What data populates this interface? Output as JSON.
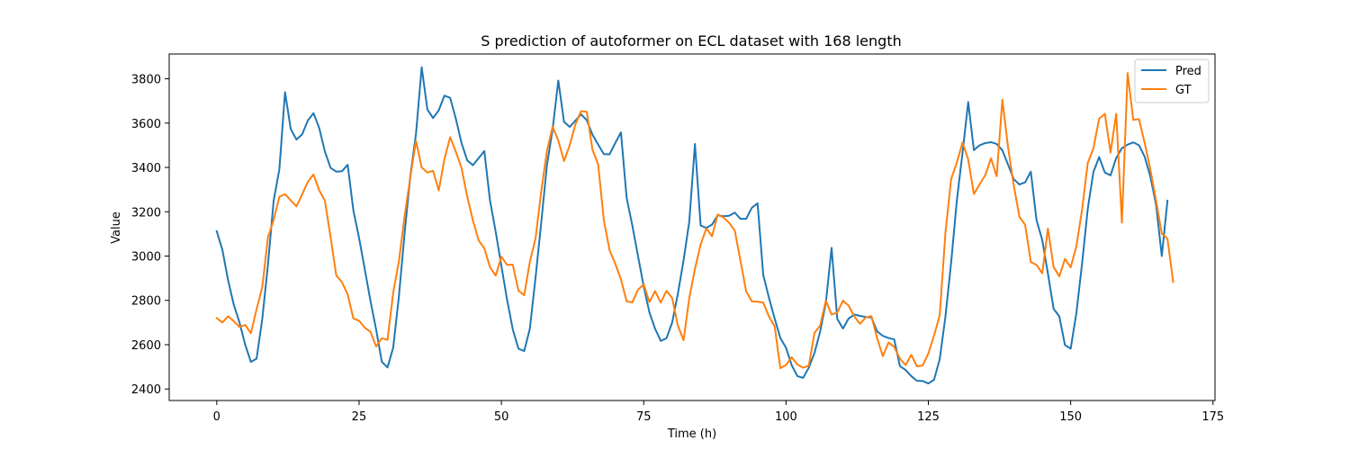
{
  "chart_data": {
    "type": "line",
    "title": "S prediction of autoformer on ECL dataset with 168 length",
    "xlabel": "Time (h)",
    "ylabel": "Value",
    "xlim": [
      -8.35,
      175.35
    ],
    "ylim": [
      2348,
      3912
    ],
    "xticks": [
      0,
      25,
      50,
      75,
      100,
      125,
      150,
      175
    ],
    "yticks": [
      2400,
      2600,
      2800,
      3000,
      3200,
      3400,
      3600,
      3800
    ],
    "grid": false,
    "legend_position": "top-right",
    "series": [
      {
        "name": "Pred",
        "color": "#1f77b4",
        "values": [
          3112,
          3027,
          2890,
          2780,
          2700,
          2600,
          2522,
          2537,
          2716,
          2962,
          3250,
          3391,
          3740,
          3573,
          3526,
          3549,
          3612,
          3645,
          3578,
          3472,
          3398,
          3381,
          3383,
          3412,
          3206,
          3082,
          2941,
          2798,
          2668,
          2523,
          2497,
          2587,
          2818,
          3103,
          3360,
          3551,
          3852,
          3662,
          3623,
          3658,
          3724,
          3714,
          3620,
          3510,
          3432,
          3410,
          3442,
          3474,
          3251,
          3110,
          2956,
          2803,
          2669,
          2582,
          2571,
          2672,
          2903,
          3150,
          3410,
          3572,
          3792,
          3606,
          3583,
          3611,
          3640,
          3613,
          3548,
          3503,
          3460,
          3459,
          3510,
          3558,
          3263,
          3138,
          3000,
          2863,
          2746,
          2672,
          2617,
          2629,
          2700,
          2830,
          2980,
          3155,
          3506,
          3138,
          3127,
          3142,
          3184,
          3180,
          3182,
          3196,
          3168,
          3168,
          3218,
          3238,
          2914,
          2812,
          2718,
          2630,
          2586,
          2507,
          2458,
          2450,
          2496,
          2563,
          2660,
          2790,
          3037,
          2716,
          2673,
          2718,
          2736,
          2730,
          2725,
          2723,
          2660,
          2640,
          2630,
          2624,
          2503,
          2486,
          2458,
          2437,
          2436,
          2425,
          2442,
          2535,
          2727,
          2970,
          3250,
          3465,
          3695,
          3478,
          3500,
          3510,
          3514,
          3506,
          3477,
          3413,
          3347,
          3323,
          3333,
          3381,
          3162,
          3073,
          2921,
          2762,
          2728,
          2598,
          2582,
          2742,
          2966,
          3213,
          3380,
          3447,
          3377,
          3364,
          3443,
          3487,
          3503,
          3513,
          3500,
          3448,
          3358,
          3232,
          3000,
          3250
        ]
      },
      {
        "name": "GT",
        "color": "#ff7f0e",
        "values": [
          2720,
          2700,
          2728,
          2706,
          2680,
          2689,
          2652,
          2760,
          2860,
          3085,
          3163,
          3267,
          3280,
          3251,
          3224,
          3278,
          3335,
          3368,
          3297,
          3250,
          3085,
          2912,
          2882,
          2827,
          2718,
          2708,
          2677,
          2658,
          2592,
          2629,
          2622,
          2835,
          2977,
          3180,
          3355,
          3520,
          3400,
          3377,
          3385,
          3296,
          3438,
          3536,
          3471,
          3398,
          3268,
          3161,
          3071,
          3035,
          2950,
          2912,
          2997,
          2960,
          2961,
          2844,
          2823,
          2974,
          3079,
          3292,
          3474,
          3584,
          3521,
          3429,
          3500,
          3594,
          3654,
          3651,
          3480,
          3414,
          3161,
          3027,
          2966,
          2895,
          2796,
          2791,
          2848,
          2872,
          2792,
          2842,
          2790,
          2843,
          2810,
          2686,
          2620,
          2810,
          2942,
          3052,
          3125,
          3089,
          3188,
          3174,
          3150,
          3115,
          2978,
          2840,
          2796,
          2794,
          2790,
          2727,
          2683,
          2494,
          2508,
          2543,
          2510,
          2496,
          2505,
          2653,
          2687,
          2799,
          2736,
          2745,
          2799,
          2776,
          2727,
          2694,
          2723,
          2729,
          2630,
          2548,
          2610,
          2590,
          2537,
          2508,
          2554,
          2502,
          2506,
          2560,
          2641,
          2733,
          3105,
          3347,
          3422,
          3513,
          3436,
          3280,
          3324,
          3365,
          3441,
          3360,
          3706,
          3491,
          3319,
          3177,
          3141,
          2973,
          2960,
          2922,
          3124,
          2951,
          2908,
          2987,
          2949,
          3044,
          3209,
          3420,
          3487,
          3620,
          3642,
          3467,
          3642,
          3151,
          3826,
          3615,
          3618,
          3510,
          3390,
          3250,
          3102,
          3078,
          2883
        ]
      }
    ]
  }
}
